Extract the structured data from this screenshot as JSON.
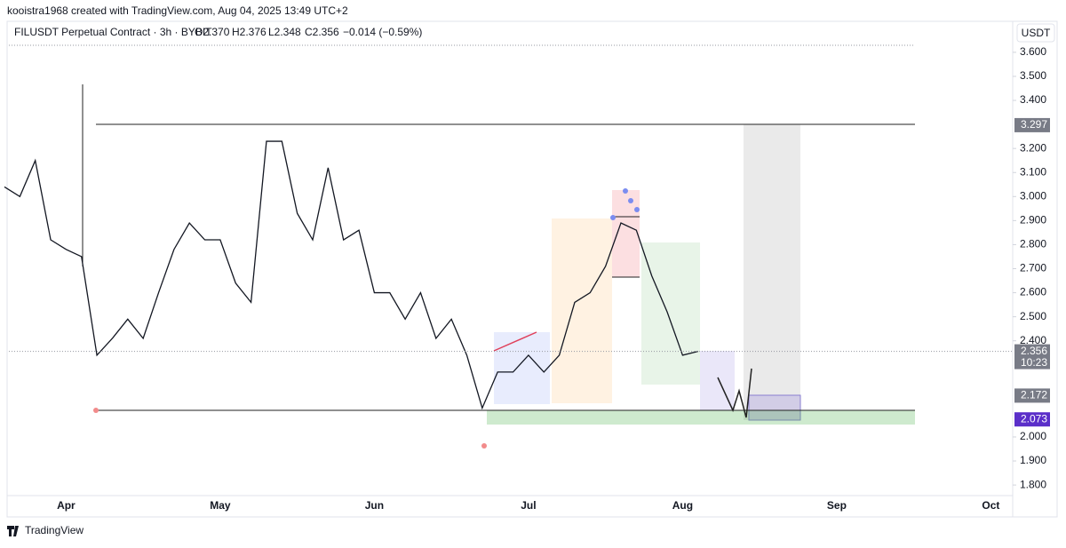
{
  "header": {
    "caption": "kooistra1968 created with TradingView.com, Aug 04, 2025 13:49 UTC+2",
    "symbol": "FILUSDT Perpetual Contract · 3h · BYBIT",
    "ohlc": [
      "O2.370",
      "H2.376",
      "L2.348",
      "C2.356"
    ],
    "change": "−0.014 (−0.59%)",
    "currency": "USDT"
  },
  "footer": {
    "brand": "TradingView"
  },
  "chart_data": {
    "type": "line",
    "color": "#131722",
    "categories": [
      null,
      null,
      null,
      null,
      "Apr",
      null,
      null,
      null,
      null,
      null,
      null,
      null,
      null,
      null,
      "May",
      null,
      null,
      null,
      null,
      null,
      null,
      null,
      null,
      null,
      "Jun",
      null,
      null,
      null,
      null,
      null,
      null,
      null,
      null,
      null,
      "Jul",
      null,
      null,
      null,
      null,
      null,
      null,
      null,
      null,
      null,
      "Aug",
      null,
      null,
      null,
      null,
      null,
      null,
      null,
      null,
      null,
      "Sep",
      null,
      null,
      null,
      null,
      null,
      null,
      null,
      null,
      null,
      "Oct",
      null
    ],
    "values": [
      3.04,
      3.0,
      3.15,
      2.82,
      2.78,
      2.75,
      2.34,
      2.41,
      2.49,
      2.41,
      2.6,
      2.78,
      2.89,
      2.82,
      2.82,
      2.64,
      2.56,
      3.23,
      3.23,
      2.93,
      2.82,
      3.12,
      2.82,
      2.86,
      2.6,
      2.6,
      2.49,
      2.6,
      2.41,
      2.49,
      2.34,
      2.12,
      2.27,
      2.27,
      2.34,
      2.27,
      2.34,
      2.56,
      2.6,
      2.71,
      2.89,
      2.86,
      2.67,
      2.52,
      2.34,
      2.356,
      null,
      null,
      null,
      null,
      null,
      null,
      null,
      null,
      null,
      null,
      null,
      null,
      null,
      null,
      null,
      null,
      null,
      null,
      null,
      null
    ],
    "ylim": [
      1.756,
      3.729
    ],
    "yticks": [
      {
        "value": 1.8,
        "label": "1.800"
      },
      {
        "value": 1.9,
        "label": "1.900"
      },
      {
        "value": 2.0,
        "label": "2.000"
      },
      {
        "value": 2.4,
        "label": "2.400"
      },
      {
        "value": 2.5,
        "label": "2.500"
      },
      {
        "value": 2.6,
        "label": "2.600"
      },
      {
        "value": 2.7,
        "label": "2.700"
      },
      {
        "value": 2.8,
        "label": "2.800"
      },
      {
        "value": 2.9,
        "label": "2.900"
      },
      {
        "value": 3.0,
        "label": "3.000"
      },
      {
        "value": 3.1,
        "label": "3.100"
      },
      {
        "value": 3.2,
        "label": "3.200"
      },
      {
        "value": 3.4,
        "label": "3.400"
      },
      {
        "value": 3.5,
        "label": "3.500"
      },
      {
        "value": 3.6,
        "label": "3.600"
      }
    ],
    "levels": [
      {
        "value": 3.297,
        "label": "3.297",
        "color": "#787b86"
      },
      {
        "value": 2.172,
        "label": "2.172",
        "color": "#787b86"
      },
      {
        "value": 2.073,
        "label": "2.073",
        "color": "#5b2fc9"
      }
    ],
    "last_price": {
      "value": 2.356,
      "label": "2.356",
      "countdown": "10:23",
      "color": "#787b86"
    }
  }
}
